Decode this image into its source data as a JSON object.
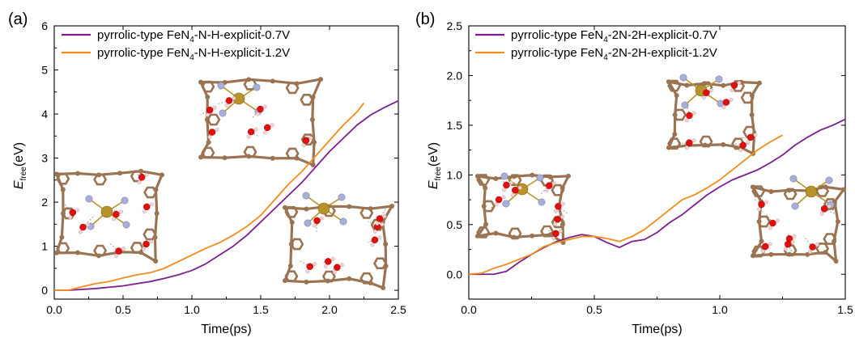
{
  "chart_data": [
    {
      "panel_label": "(a)",
      "type": "line",
      "xlabel": "Time(ps)",
      "ylabel_main": "E",
      "ylabel_sub": "free",
      "ylabel_unit": "(eV)",
      "xlim": [
        0,
        2.5
      ],
      "ylim": [
        -0.2,
        6
      ],
      "xticks": [
        "0.0",
        "0.5",
        "1.0",
        "1.5",
        "2.0",
        "2.5"
      ],
      "yticks": [
        "0",
        "1",
        "2",
        "3",
        "4",
        "5",
        "6"
      ],
      "legend_position": "top-left",
      "series": [
        {
          "name_prefix": "pyrrolic-type FeN",
          "name_sub": "4",
          "name_suffix": "-N-H-explicit-0.7V",
          "color": "#7b1f8f",
          "x": [
            0,
            0.1,
            0.2,
            0.3,
            0.4,
            0.5,
            0.6,
            0.7,
            0.8,
            0.9,
            1.0,
            1.1,
            1.2,
            1.3,
            1.4,
            1.5,
            1.6,
            1.7,
            1.8,
            1.9,
            2.0,
            2.1,
            2.2,
            2.3,
            2.4,
            2.5
          ],
          "y": [
            0.0,
            0.0,
            0.02,
            0.04,
            0.07,
            0.1,
            0.15,
            0.2,
            0.27,
            0.35,
            0.45,
            0.6,
            0.8,
            1.0,
            1.25,
            1.55,
            1.85,
            2.15,
            2.45,
            2.8,
            3.15,
            3.45,
            3.75,
            3.98,
            4.15,
            4.3
          ]
        },
        {
          "name_prefix": "pyrrolic-type FeN",
          "name_sub": "4",
          "name_suffix": "-N-H-explicit-1.2V",
          "color": "#f28c1a",
          "x": [
            0,
            0.1,
            0.2,
            0.3,
            0.4,
            0.5,
            0.6,
            0.7,
            0.8,
            0.9,
            1.0,
            1.1,
            1.2,
            1.3,
            1.4,
            1.5,
            1.6,
            1.7,
            1.8,
            1.9,
            2.0,
            2.1,
            2.2,
            2.25
          ],
          "y": [
            0.0,
            0.0,
            0.08,
            0.15,
            0.2,
            0.28,
            0.35,
            0.4,
            0.5,
            0.65,
            0.8,
            0.95,
            1.08,
            1.25,
            1.45,
            1.7,
            2.05,
            2.4,
            2.7,
            3.05,
            3.4,
            3.75,
            4.05,
            4.25
          ]
        }
      ]
    },
    {
      "panel_label": "(b)",
      "type": "line",
      "xlabel": "Time(ps)",
      "ylabel_main": "E",
      "ylabel_sub": "free",
      "ylabel_unit": "(eV)",
      "xlim": [
        0,
        1.5
      ],
      "ylim": [
        -0.25,
        2.5
      ],
      "xticks": [
        "0.0",
        "0.5",
        "1.0",
        "1.5"
      ],
      "yticks": [
        "0.0",
        "0.5",
        "1.0",
        "1.5",
        "2.0",
        "2.5"
      ],
      "legend_position": "top-left",
      "series": [
        {
          "name_prefix": "pyrrolic-type FeN",
          "name_sub": "4",
          "name_suffix": "-2N-2H-explicit-0.7V",
          "color": "#7b1f8f",
          "x": [
            0,
            0.1,
            0.15,
            0.2,
            0.25,
            0.3,
            0.35,
            0.4,
            0.45,
            0.5,
            0.55,
            0.6,
            0.65,
            0.7,
            0.75,
            0.8,
            0.85,
            0.9,
            0.95,
            1.0,
            1.05,
            1.1,
            1.15,
            1.2,
            1.25,
            1.3,
            1.35,
            1.4,
            1.45,
            1.5
          ],
          "y": [
            0.0,
            0.0,
            0.03,
            0.12,
            0.2,
            0.27,
            0.33,
            0.37,
            0.4,
            0.38,
            0.32,
            0.27,
            0.33,
            0.35,
            0.42,
            0.52,
            0.6,
            0.7,
            0.8,
            0.88,
            0.95,
            1.0,
            1.05,
            1.12,
            1.2,
            1.3,
            1.38,
            1.45,
            1.5,
            1.56
          ]
        },
        {
          "name_prefix": "pyrrolic-type FeN",
          "name_sub": "4",
          "name_suffix": "-2N-2H-explicit-1.2V",
          "color": "#f28c1a",
          "x": [
            0,
            0.05,
            0.1,
            0.15,
            0.2,
            0.25,
            0.3,
            0.35,
            0.4,
            0.45,
            0.5,
            0.55,
            0.6,
            0.65,
            0.7,
            0.75,
            0.8,
            0.85,
            0.9,
            0.95,
            1.0,
            1.05,
            1.1,
            1.15,
            1.2,
            1.25
          ],
          "y": [
            0.0,
            0.01,
            0.06,
            0.1,
            0.15,
            0.2,
            0.28,
            0.32,
            0.35,
            0.38,
            0.38,
            0.36,
            0.33,
            0.38,
            0.45,
            0.55,
            0.65,
            0.75,
            0.8,
            0.87,
            0.95,
            1.05,
            1.15,
            1.25,
            1.33,
            1.4
          ]
        }
      ]
    }
  ],
  "structure_insets": [
    {
      "name": "inset-a-left"
    },
    {
      "name": "inset-a-top"
    },
    {
      "name": "inset-a-right"
    },
    {
      "name": "inset-b-left"
    },
    {
      "name": "inset-b-top"
    },
    {
      "name": "inset-b-right"
    }
  ]
}
